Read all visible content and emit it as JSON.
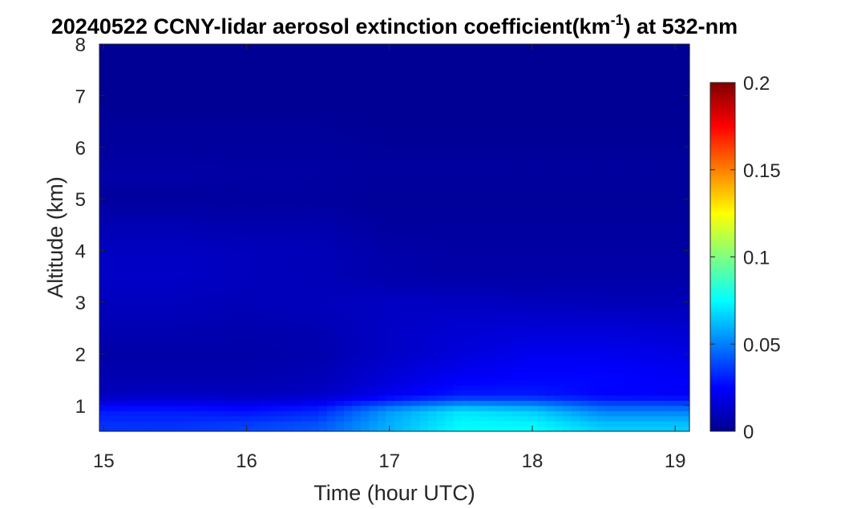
{
  "chart_data": {
    "type": "heatmap",
    "title": {
      "main": "20240522 CCNY-lidar aerosol extinction coefficient(km",
      "superscript": "-1",
      "suffix": ") at 532-nm"
    },
    "xlabel": "Time (hour UTC)",
    "ylabel": "Altitude (km)",
    "xlim": [
      14.97,
      19.1
    ],
    "ylim": [
      0.5,
      8
    ],
    "xticks": [
      15,
      16,
      17,
      18,
      19
    ],
    "xtick_labels": [
      "15",
      "16",
      "17",
      "18",
      "19"
    ],
    "yticks": [
      1,
      2,
      3,
      4,
      5,
      6,
      7,
      8
    ],
    "ytick_labels": [
      "1",
      "2",
      "3",
      "4",
      "5",
      "6",
      "7",
      "8"
    ],
    "colorbar": {
      "colormap": "jet",
      "clim": [
        0,
        0.2
      ],
      "ticks": [
        0,
        0.05,
        0.1,
        0.15,
        0.2
      ],
      "tick_labels": [
        "0",
        "0.05",
        "0.1",
        "0.15",
        "0.2"
      ]
    },
    "grid": false,
    "extinction_profile_km_inv": {
      "description_units": "km^-1",
      "times": [
        15.0,
        15.5,
        16.0,
        16.5,
        17.0,
        17.5,
        18.0,
        18.5,
        19.0
      ],
      "altitudes": [
        0.6,
        0.9,
        1.2,
        1.5,
        2.0,
        2.5,
        3.0,
        3.5,
        4.0,
        4.5,
        5.0,
        5.5,
        6.0,
        6.5,
        7.0,
        7.5,
        8.0
      ],
      "values": [
        [
          0.035,
          0.035,
          0.038,
          0.042,
          0.06,
          0.075,
          0.075,
          0.065,
          0.065
        ],
        [
          0.03,
          0.03,
          0.028,
          0.032,
          0.055,
          0.07,
          0.065,
          0.05,
          0.05
        ],
        [
          0.012,
          0.014,
          0.012,
          0.014,
          0.022,
          0.03,
          0.03,
          0.025,
          0.024
        ],
        [
          0.01,
          0.01,
          0.01,
          0.011,
          0.018,
          0.024,
          0.026,
          0.026,
          0.024
        ],
        [
          0.008,
          0.008,
          0.008,
          0.009,
          0.014,
          0.018,
          0.022,
          0.022,
          0.02
        ],
        [
          0.01,
          0.01,
          0.009,
          0.01,
          0.014,
          0.016,
          0.017,
          0.017,
          0.016
        ],
        [
          0.012,
          0.012,
          0.011,
          0.012,
          0.013,
          0.013,
          0.012,
          0.011,
          0.011
        ],
        [
          0.014,
          0.014,
          0.012,
          0.011,
          0.009,
          0.008,
          0.008,
          0.008,
          0.008
        ],
        [
          0.013,
          0.013,
          0.012,
          0.011,
          0.008,
          0.007,
          0.007,
          0.007,
          0.007
        ],
        [
          0.01,
          0.01,
          0.009,
          0.009,
          0.006,
          0.006,
          0.006,
          0.006,
          0.006
        ],
        [
          0.006,
          0.006,
          0.006,
          0.006,
          0.005,
          0.005,
          0.005,
          0.005,
          0.005
        ],
        [
          0.008,
          0.008,
          0.007,
          0.007,
          0.006,
          0.006,
          0.006,
          0.006,
          0.006
        ],
        [
          0.006,
          0.006,
          0.006,
          0.006,
          0.005,
          0.005,
          0.005,
          0.005,
          0.005
        ],
        [
          0.005,
          0.005,
          0.005,
          0.005,
          0.004,
          0.004,
          0.004,
          0.004,
          0.004
        ],
        [
          0.004,
          0.004,
          0.004,
          0.004,
          0.004,
          0.004,
          0.004,
          0.004,
          0.004
        ],
        [
          0.004,
          0.004,
          0.004,
          0.004,
          0.004,
          0.004,
          0.004,
          0.004,
          0.004
        ],
        [
          0.004,
          0.004,
          0.004,
          0.004,
          0.004,
          0.004,
          0.004,
          0.004,
          0.004
        ]
      ]
    }
  }
}
